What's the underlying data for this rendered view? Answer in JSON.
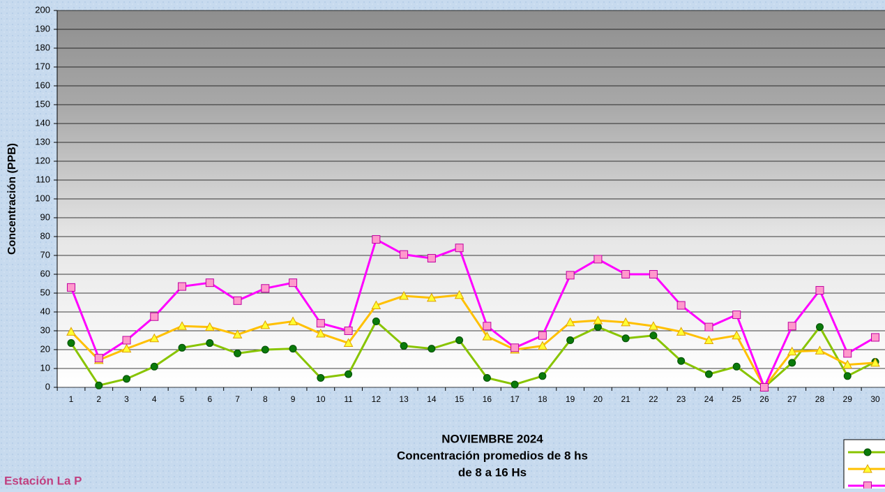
{
  "chart_data": {
    "type": "line",
    "title": "NOVIEMBRE 2024",
    "subtitle": [
      "Concentración promedios de 8 hs",
      "de 8 a 16 Hs"
    ],
    "y_label": "Concentración (PPB)",
    "annotations": [
      "Estación La P"
    ],
    "categories": [
      "1",
      "2",
      "3",
      "4",
      "5",
      "6",
      "7",
      "8",
      "9",
      "10",
      "11",
      "12",
      "13",
      "14",
      "15",
      "16",
      "17",
      "18",
      "19",
      "20",
      "21",
      "22",
      "23",
      "24",
      "25",
      "26",
      "27",
      "28",
      "29",
      "30"
    ],
    "ylim": [
      0,
      200
    ],
    "yticks": [
      0,
      10,
      20,
      30,
      40,
      50,
      60,
      70,
      80,
      90,
      100,
      110,
      120,
      130,
      140,
      150,
      160,
      170,
      180,
      190,
      200
    ],
    "grid": true,
    "legend": "bottom-right",
    "series": [
      {
        "color": "#88c400",
        "marker": "circle",
        "marker_color": "#0a7a0a",
        "values": [
          23.5,
          1,
          4.5,
          11,
          21,
          23.5,
          18,
          20,
          20.5,
          5,
          7,
          35,
          22,
          20.5,
          25,
          5,
          1.5,
          6,
          25,
          32,
          26,
          27.5,
          14,
          7,
          11,
          0,
          13,
          32,
          6,
          13.5
        ]
      },
      {
        "color": "#ffc000",
        "marker": "triangle",
        "marker_color": "#ffff33",
        "values": [
          29.5,
          14.5,
          20.5,
          26,
          32.5,
          32,
          28,
          33,
          35,
          28.5,
          23.5,
          43.5,
          48.5,
          47.5,
          49,
          27,
          20,
          22,
          34.5,
          35.5,
          34.5,
          32.5,
          29.5,
          25,
          27.5,
          0,
          19,
          19.5,
          12,
          13
        ]
      },
      {
        "color": "#ff00ff",
        "marker": "square",
        "marker_color": "#ff99cc",
        "values": [
          53,
          15.5,
          25,
          37.5,
          53.5,
          55.5,
          46,
          52.5,
          55.5,
          34,
          30,
          78.5,
          70.5,
          68.5,
          74,
          32.5,
          21,
          27.5,
          59.5,
          68,
          60,
          60,
          43.5,
          32,
          38.5,
          0,
          32.5,
          51.5,
          18,
          26.5
        ]
      }
    ]
  }
}
